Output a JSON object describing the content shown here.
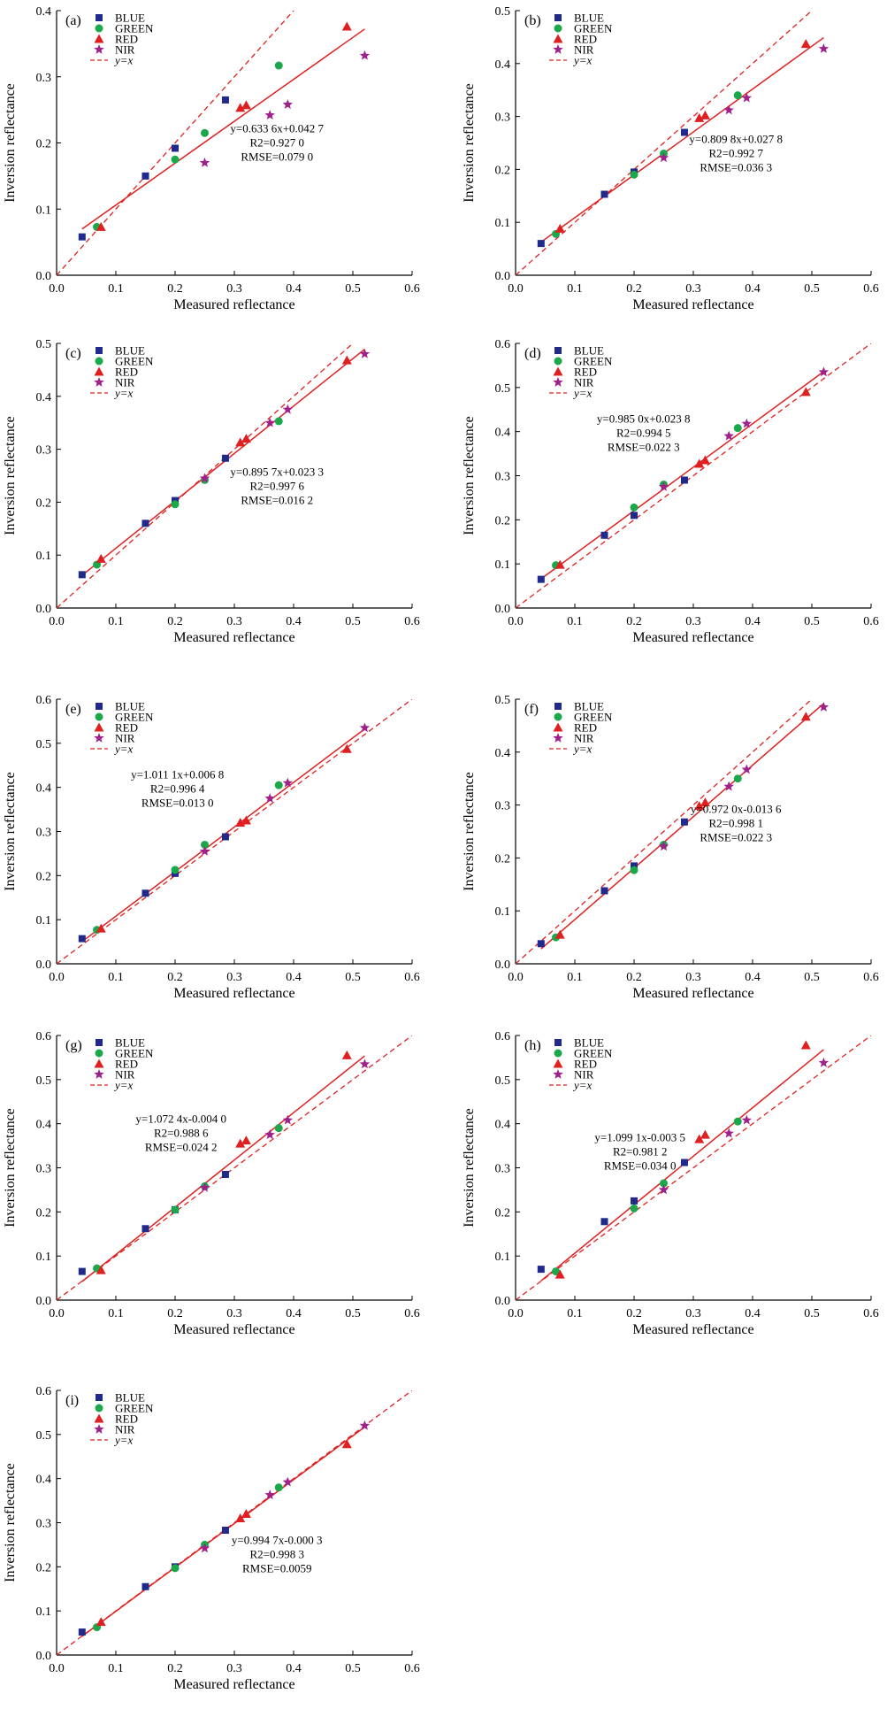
{
  "chart_data": [
    {
      "type": "scatter",
      "panel": "(a)",
      "xlabel": "Measured reflectance",
      "ylabel": "Inversion reflectance",
      "xlim": [
        0,
        0.6
      ],
      "ylim": [
        0,
        0.4
      ],
      "xticks": [
        "0.0",
        "0.1",
        "0.2",
        "0.3",
        "0.4",
        "0.5",
        "0.6"
      ],
      "yticks": [
        "0.0",
        "0.1",
        "0.2",
        "0.3",
        "0.4"
      ],
      "legend": [
        "BLUE",
        "GREEN",
        "RED",
        "NIR",
        "y=x"
      ],
      "series": [
        {
          "name": "BLUE",
          "x": [
            0.043,
            0.15,
            0.2,
            0.285
          ],
          "y": [
            0.058,
            0.15,
            0.192,
            0.265
          ]
        },
        {
          "name": "GREEN",
          "x": [
            0.068,
            0.2,
            0.25,
            0.375
          ],
          "y": [
            0.073,
            0.175,
            0.215,
            0.317
          ]
        },
        {
          "name": "RED",
          "x": [
            0.075,
            0.31,
            0.32,
            0.49
          ],
          "y": [
            0.073,
            0.253,
            0.257,
            0.376
          ]
        },
        {
          "name": "NIR",
          "x": [
            0.25,
            0.36,
            0.39,
            0.52
          ],
          "y": [
            0.17,
            0.242,
            0.258,
            0.332
          ]
        }
      ],
      "fit": {
        "slope": 0.6336,
        "intercept": 0.0427,
        "x_range": [
          0.043,
          0.52
        ]
      },
      "equation": "y=0.633 6x+0.042 7",
      "r2": "R2=0.927 0",
      "rmse": "RMSE=0.079 0"
    },
    {
      "type": "scatter",
      "panel": "(b)",
      "xlabel": "Measured reflectance",
      "ylabel": "Inversion reflectance",
      "xlim": [
        0,
        0.6
      ],
      "ylim": [
        0,
        0.5
      ],
      "xticks": [
        "0.0",
        "0.1",
        "0.2",
        "0.3",
        "0.4",
        "0.5",
        "0.6"
      ],
      "yticks": [
        "0.0",
        "0.1",
        "0.2",
        "0.3",
        "0.4",
        "0.5"
      ],
      "legend": [
        "BLUE",
        "GREEN",
        "RED",
        "NIR",
        "y=x"
      ],
      "series": [
        {
          "name": "BLUE",
          "x": [
            0.043,
            0.15,
            0.2,
            0.285
          ],
          "y": [
            0.06,
            0.153,
            0.195,
            0.27
          ]
        },
        {
          "name": "GREEN",
          "x": [
            0.068,
            0.2,
            0.25,
            0.375
          ],
          "y": [
            0.078,
            0.19,
            0.23,
            0.34
          ]
        },
        {
          "name": "RED",
          "x": [
            0.075,
            0.31,
            0.32,
            0.49
          ],
          "y": [
            0.088,
            0.297,
            0.302,
            0.437
          ]
        },
        {
          "name": "NIR",
          "x": [
            0.25,
            0.36,
            0.39,
            0.52
          ],
          "y": [
            0.222,
            0.312,
            0.335,
            0.428
          ]
        }
      ],
      "fit": {
        "slope": 0.8098,
        "intercept": 0.0278,
        "x_range": [
          0.043,
          0.52
        ]
      },
      "equation": "y=0.809 8x+0.027 8",
      "r2": "R2=0.992 7",
      "rmse": "RMSE=0.036 3"
    },
    {
      "type": "scatter",
      "panel": "(c)",
      "xlabel": "Measured reflectance",
      "ylabel": "Inversion reflectance",
      "xlim": [
        0,
        0.6
      ],
      "ylim": [
        0,
        0.5
      ],
      "xticks": [
        "0.0",
        "0.1",
        "0.2",
        "0.3",
        "0.4",
        "0.5",
        "0.6"
      ],
      "yticks": [
        "0.0",
        "0.1",
        "0.2",
        "0.3",
        "0.4",
        "0.5"
      ],
      "legend": [
        "BLUE",
        "GREEN",
        "RED",
        "NIR",
        "y=x"
      ],
      "series": [
        {
          "name": "BLUE",
          "x": [
            0.043,
            0.15,
            0.2,
            0.285
          ],
          "y": [
            0.063,
            0.16,
            0.203,
            0.283
          ]
        },
        {
          "name": "GREEN",
          "x": [
            0.068,
            0.2,
            0.25,
            0.375
          ],
          "y": [
            0.082,
            0.196,
            0.242,
            0.353
          ]
        },
        {
          "name": "RED",
          "x": [
            0.075,
            0.31,
            0.32,
            0.49
          ],
          "y": [
            0.093,
            0.313,
            0.32,
            0.468
          ]
        },
        {
          "name": "NIR",
          "x": [
            0.25,
            0.36,
            0.39,
            0.52
          ],
          "y": [
            0.245,
            0.35,
            0.375,
            0.48
          ]
        }
      ],
      "fit": {
        "slope": 0.8957,
        "intercept": 0.0233,
        "x_range": [
          0.043,
          0.52
        ]
      },
      "equation": "y=0.895 7x+0.023 3",
      "r2": "R2=0.997 6",
      "rmse": "RMSE=0.016 2"
    },
    {
      "type": "scatter",
      "panel": "(d)",
      "xlabel": "Measured reflectance",
      "ylabel": "Inversion reflectance",
      "xlim": [
        0,
        0.6
      ],
      "ylim": [
        0,
        0.6
      ],
      "xticks": [
        "0.0",
        "0.1",
        "0.2",
        "0.3",
        "0.4",
        "0.5",
        "0.6"
      ],
      "yticks": [
        "0.0",
        "0.1",
        "0.2",
        "0.3",
        "0.4",
        "0.5",
        "0.6"
      ],
      "legend": [
        "BLUE",
        "GREEN",
        "RED",
        "NIR",
        "y=x"
      ],
      "series": [
        {
          "name": "BLUE",
          "x": [
            0.043,
            0.15,
            0.2,
            0.285
          ],
          "y": [
            0.065,
            0.165,
            0.21,
            0.29
          ]
        },
        {
          "name": "GREEN",
          "x": [
            0.068,
            0.2,
            0.25,
            0.375
          ],
          "y": [
            0.097,
            0.228,
            0.28,
            0.408
          ]
        },
        {
          "name": "RED",
          "x": [
            0.075,
            0.31,
            0.32,
            0.49
          ],
          "y": [
            0.098,
            0.327,
            0.335,
            0.49
          ]
        },
        {
          "name": "NIR",
          "x": [
            0.25,
            0.36,
            0.39,
            0.52
          ],
          "y": [
            0.275,
            0.39,
            0.418,
            0.535
          ]
        }
      ],
      "fit": {
        "slope": 0.985,
        "intercept": 0.0238,
        "x_range": [
          0.043,
          0.52
        ]
      },
      "equation": "y=0.985 0x+0.023 8",
      "r2": "R2=0.994 5",
      "rmse": "RMSE=0.022 3"
    },
    {
      "type": "scatter",
      "panel": "(e)",
      "xlabel": "Measured reflectance",
      "ylabel": "Inversion reflectance",
      "xlim": [
        0,
        0.6
      ],
      "ylim": [
        0,
        0.6
      ],
      "xticks": [
        "0.0",
        "0.1",
        "0.2",
        "0.3",
        "0.4",
        "0.5",
        "0.6"
      ],
      "yticks": [
        "0.0",
        "0.1",
        "0.2",
        "0.3",
        "0.4",
        "0.5",
        "0.6"
      ],
      "legend": [
        "BLUE",
        "GREEN",
        "RED",
        "NIR",
        "y=x"
      ],
      "series": [
        {
          "name": "BLUE",
          "x": [
            0.043,
            0.15,
            0.2,
            0.285
          ],
          "y": [
            0.057,
            0.16,
            0.205,
            0.288
          ]
        },
        {
          "name": "GREEN",
          "x": [
            0.068,
            0.2,
            0.25,
            0.375
          ],
          "y": [
            0.077,
            0.213,
            0.27,
            0.405
          ]
        },
        {
          "name": "RED",
          "x": [
            0.075,
            0.31,
            0.32,
            0.49
          ],
          "y": [
            0.08,
            0.32,
            0.325,
            0.487
          ]
        },
        {
          "name": "NIR",
          "x": [
            0.25,
            0.36,
            0.39,
            0.52
          ],
          "y": [
            0.255,
            0.375,
            0.41,
            0.535
          ]
        }
      ],
      "fit": {
        "slope": 1.0111,
        "intercept": 0.0068,
        "x_range": [
          0.043,
          0.52
        ]
      },
      "equation": "y=1.011 1x+0.006 8",
      "r2": "R2=0.996 4",
      "rmse": "RMSE=0.013 0"
    },
    {
      "type": "scatter",
      "panel": "(f)",
      "xlabel": "Measured reflectance",
      "ylabel": "Inversion reflectance",
      "xlim": [
        0,
        0.6
      ],
      "ylim": [
        0,
        0.5
      ],
      "xticks": [
        "0.0",
        "0.1",
        "0.2",
        "0.3",
        "0.4",
        "0.5",
        "0.6"
      ],
      "yticks": [
        "0.0",
        "0.1",
        "0.2",
        "0.3",
        "0.4",
        "0.5"
      ],
      "legend": [
        "BLUE",
        "GREEN",
        "RED",
        "NIR",
        "y=x"
      ],
      "series": [
        {
          "name": "BLUE",
          "x": [
            0.043,
            0.15,
            0.2,
            0.285
          ],
          "y": [
            0.038,
            0.138,
            0.185,
            0.268
          ]
        },
        {
          "name": "GREEN",
          "x": [
            0.068,
            0.2,
            0.25,
            0.375
          ],
          "y": [
            0.05,
            0.177,
            0.225,
            0.35
          ]
        },
        {
          "name": "RED",
          "x": [
            0.075,
            0.31,
            0.32,
            0.49
          ],
          "y": [
            0.055,
            0.298,
            0.305,
            0.467
          ]
        },
        {
          "name": "NIR",
          "x": [
            0.25,
            0.36,
            0.39,
            0.52
          ],
          "y": [
            0.222,
            0.335,
            0.367,
            0.485
          ]
        }
      ],
      "fit": {
        "slope": 0.972,
        "intercept": -0.0136,
        "x_range": [
          0.043,
          0.52
        ]
      },
      "equation": "y=0.972 0x-0.013 6",
      "r2": "R2=0.998 1",
      "rmse": "RMSE=0.022 3"
    },
    {
      "type": "scatter",
      "panel": "(g)",
      "xlabel": "Measured reflectance",
      "ylabel": "Inversion reflectance",
      "xlim": [
        0,
        0.6
      ],
      "ylim": [
        0,
        0.6
      ],
      "xticks": [
        "0.0",
        "0.1",
        "0.2",
        "0.3",
        "0.4",
        "0.5",
        "0.6"
      ],
      "yticks": [
        "0.0",
        "0.1",
        "0.2",
        "0.3",
        "0.4",
        "0.5",
        "0.6"
      ],
      "legend": [
        "BLUE",
        "GREEN",
        "RED",
        "NIR",
        "y=x"
      ],
      "series": [
        {
          "name": "BLUE",
          "x": [
            0.043,
            0.15,
            0.2,
            0.285
          ],
          "y": [
            0.065,
            0.162,
            0.205,
            0.285
          ]
        },
        {
          "name": "GREEN",
          "x": [
            0.068,
            0.2,
            0.25,
            0.375
          ],
          "y": [
            0.072,
            0.205,
            0.258,
            0.39
          ]
        },
        {
          "name": "RED",
          "x": [
            0.075,
            0.31,
            0.32,
            0.49
          ],
          "y": [
            0.068,
            0.355,
            0.362,
            0.555
          ]
        },
        {
          "name": "NIR",
          "x": [
            0.25,
            0.36,
            0.39,
            0.52
          ],
          "y": [
            0.255,
            0.375,
            0.408,
            0.535
          ]
        }
      ],
      "fit": {
        "slope": 1.0724,
        "intercept": -0.004,
        "x_range": [
          0.043,
          0.52
        ]
      },
      "equation": "y=1.072 4x-0.004 0",
      "r2": "R2=0.988 6",
      "rmse": "RMSE=0.024 2"
    },
    {
      "type": "scatter",
      "panel": "(h)",
      "xlabel": "Measured reflectance",
      "ylabel": "Inversion reflectance",
      "xlim": [
        0,
        0.6
      ],
      "ylim": [
        0,
        0.6
      ],
      "xticks": [
        "0.0",
        "0.1",
        "0.2",
        "0.3",
        "0.4",
        "0.5",
        "0.6"
      ],
      "yticks": [
        "0.0",
        "0.1",
        "0.2",
        "0.3",
        "0.4",
        "0.5",
        "0.6"
      ],
      "legend": [
        "BLUE",
        "GREEN",
        "RED",
        "NIR",
        "y=x"
      ],
      "series": [
        {
          "name": "BLUE",
          "x": [
            0.043,
            0.15,
            0.2,
            0.285
          ],
          "y": [
            0.07,
            0.178,
            0.225,
            0.312
          ]
        },
        {
          "name": "GREEN",
          "x": [
            0.068,
            0.2,
            0.25,
            0.375
          ],
          "y": [
            0.065,
            0.208,
            0.265,
            0.405
          ]
        },
        {
          "name": "RED",
          "x": [
            0.075,
            0.31,
            0.32,
            0.49
          ],
          "y": [
            0.058,
            0.365,
            0.375,
            0.578
          ]
        },
        {
          "name": "NIR",
          "x": [
            0.25,
            0.36,
            0.39,
            0.52
          ],
          "y": [
            0.25,
            0.378,
            0.408,
            0.538
          ]
        }
      ],
      "fit": {
        "slope": 1.0991,
        "intercept": -0.0035,
        "x_range": [
          0.043,
          0.52
        ]
      },
      "equation": "y=1.099 1x-0.003 5",
      "r2": "R2=0.981 2",
      "rmse": "RMSE=0.034 0"
    },
    {
      "type": "scatter",
      "panel": "(i)",
      "xlabel": "Measured reflectance",
      "ylabel": "Inversion reflectance",
      "xlim": [
        0,
        0.6
      ],
      "ylim": [
        0,
        0.6
      ],
      "xticks": [
        "0.0",
        "0.1",
        "0.2",
        "0.3",
        "0.4",
        "0.5",
        "0.6"
      ],
      "yticks": [
        "0.0",
        "0.1",
        "0.2",
        "0.3",
        "0.4",
        "0.5",
        "0.6"
      ],
      "legend": [
        "BLUE",
        "GREEN",
        "RED",
        "NIR",
        "y=x"
      ],
      "series": [
        {
          "name": "BLUE",
          "x": [
            0.043,
            0.15,
            0.2,
            0.285
          ],
          "y": [
            0.052,
            0.155,
            0.2,
            0.283
          ]
        },
        {
          "name": "GREEN",
          "x": [
            0.068,
            0.2,
            0.25,
            0.375
          ],
          "y": [
            0.063,
            0.197,
            0.25,
            0.38
          ]
        },
        {
          "name": "RED",
          "x": [
            0.075,
            0.31,
            0.32,
            0.49
          ],
          "y": [
            0.075,
            0.31,
            0.32,
            0.478
          ]
        },
        {
          "name": "NIR",
          "x": [
            0.25,
            0.36,
            0.39,
            0.52
          ],
          "y": [
            0.242,
            0.363,
            0.392,
            0.52
          ]
        }
      ],
      "fit": {
        "slope": 0.9947,
        "intercept": -0.0003,
        "x_range": [
          0.043,
          0.52
        ]
      },
      "equation": "y=0.994 7x-0.000 3",
      "r2": "R2=0.998 3",
      "rmse": "RMSE=0.0059"
    }
  ],
  "colors": {
    "BLUE": "#1f2a8c",
    "GREEN": "#1aa84a",
    "RED": "#e02020",
    "NIR": "#a0208c",
    "fit": "#e02020",
    "identity": "#e02020",
    "axis": "#000000"
  },
  "markers": {
    "BLUE": "square",
    "GREEN": "circle",
    "RED": "triangle",
    "NIR": "star"
  }
}
